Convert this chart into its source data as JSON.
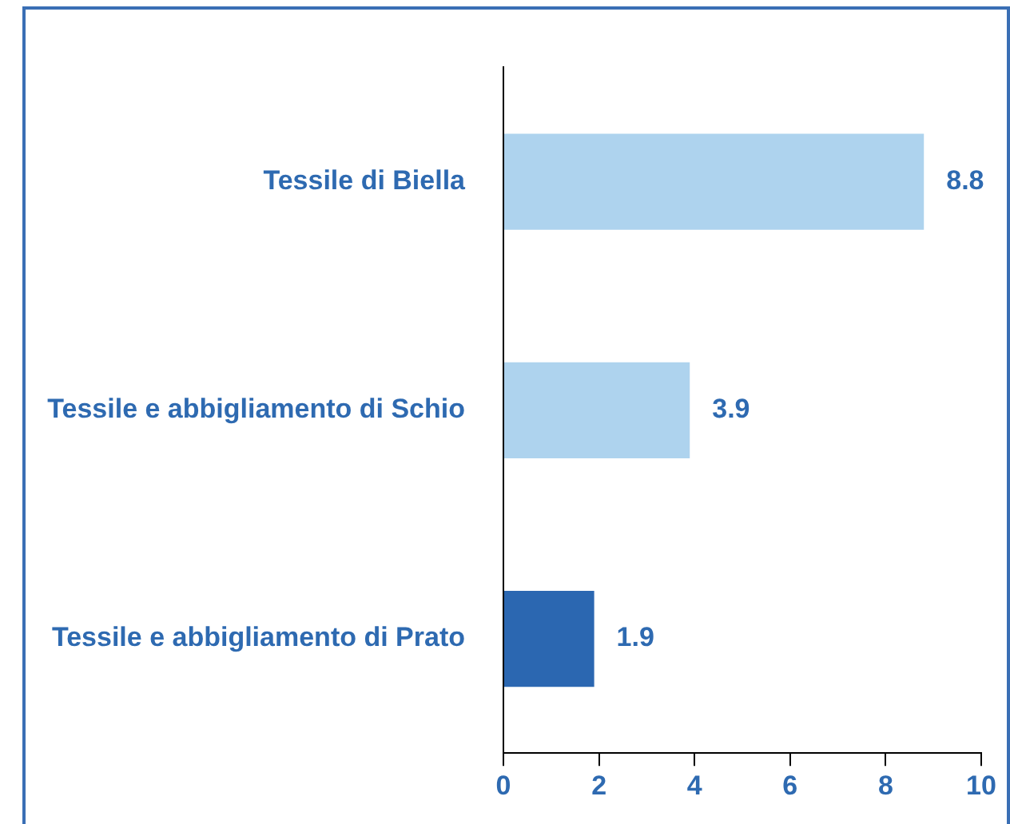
{
  "chart_data": {
    "type": "bar",
    "orientation": "horizontal",
    "categories": [
      "Tessile di Biella",
      "Tessile e abbigliamento di Schio",
      "Tessile e abbigliamento di Prato"
    ],
    "values": [
      8.8,
      3.9,
      1.9
    ],
    "colors": [
      "#aed3ee",
      "#aed3ee",
      "#2b67b1"
    ],
    "xlim": [
      0,
      10
    ],
    "xticks": [
      0,
      2,
      4,
      6,
      8,
      10
    ],
    "grid": false,
    "legend": false,
    "data_labels": true
  }
}
